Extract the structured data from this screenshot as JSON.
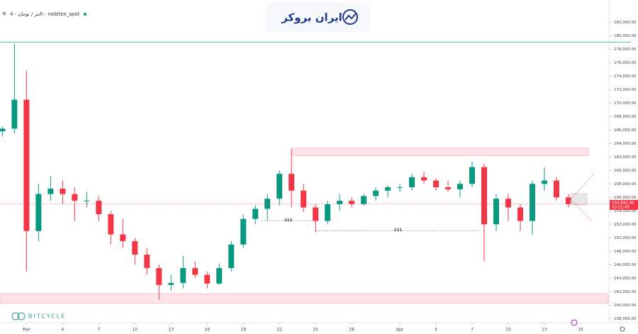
{
  "chart_data": {
    "type": "candlestick",
    "title": "تتر / تومان · 4h · nobitex_spot",
    "logo": "ایران بروکر",
    "watermark": "BITCYCLE",
    "up_color": "#089981",
    "down_color": "#f23645",
    "x": [
      -1,
      0,
      1,
      2,
      3,
      4,
      5,
      6,
      7,
      8,
      9,
      10,
      11,
      12,
      13,
      14,
      15,
      16,
      17,
      18,
      19,
      20,
      21,
      22,
      23,
      24,
      25,
      26,
      27,
      28,
      29,
      30,
      31,
      32,
      33,
      34,
      35,
      36,
      37,
      38,
      39,
      40,
      41,
      42,
      43,
      44,
      45,
      46
    ],
    "open": [
      165800,
      166200,
      170500,
      151000,
      156500,
      157300,
      156500,
      155500,
      155500,
      153500,
      150500,
      149500,
      147500,
      145500,
      143000,
      143300,
      145500,
      144500,
      143200,
      145500,
      149000,
      152800,
      154300,
      155800,
      159500,
      157000,
      154500,
      152500,
      155000,
      155500,
      155000,
      156200,
      157000,
      157500,
      157500,
      159000,
      158500,
      157500,
      157200,
      158000,
      160500,
      152000,
      155800,
      154500,
      152500,
      158000,
      158500,
      156000
    ],
    "high": [
      166500,
      178800,
      174800,
      158000,
      159200,
      158500,
      157500,
      156800,
      156200,
      154000,
      152800,
      150000,
      148500,
      146000,
      144500,
      147300,
      146500,
      145000,
      146200,
      149500,
      153500,
      154800,
      156500,
      160000,
      163200,
      158000,
      155000,
      155500,
      156500,
      156000,
      156500,
      157500,
      157800,
      158000,
      159500,
      159800,
      158800,
      158500,
      158500,
      161300,
      161000,
      156500,
      156500,
      155000,
      158500,
      160500,
      159000,
      156500
    ],
    "low": [
      165000,
      165500,
      145000,
      149500,
      155500,
      155000,
      152500,
      154500,
      152500,
      149000,
      148500,
      146000,
      144500,
      140800,
      142200,
      142500,
      144000,
      142500,
      143000,
      145000,
      148500,
      152000,
      152500,
      154800,
      154500,
      153800,
      150800,
      152000,
      154000,
      154500,
      154800,
      155500,
      156000,
      156800,
      157000,
      158000,
      157000,
      156800,
      156000,
      157500,
      146500,
      151000,
      152500,
      151000,
      150500,
      157000,
      155500,
      154500
    ],
    "close": [
      166200,
      170500,
      151000,
      156500,
      157300,
      156500,
      155500,
      155500,
      153500,
      150500,
      149500,
      147500,
      145500,
      143000,
      143300,
      145500,
      144500,
      143200,
      145500,
      149000,
      152800,
      154300,
      155800,
      159500,
      157000,
      154500,
      152500,
      155000,
      155500,
      155000,
      156200,
      157000,
      157500,
      157500,
      159000,
      158500,
      157500,
      157200,
      158000,
      160500,
      152000,
      155800,
      154500,
      152500,
      158000,
      158500,
      156000,
      154991
    ],
    "xlim": [
      -1.2,
      49.3
    ],
    "ylim": [
      137400,
      185300
    ],
    "xticks": [
      {
        "value": 1,
        "label": "Mar"
      },
      4,
      7,
      10,
      13,
      16,
      19,
      22,
      25,
      28,
      {
        "value": 32,
        "label": "Apr"
      },
      {
        "value": 35,
        "label": "4"
      },
      {
        "value": 38,
        "label": "7"
      },
      {
        "value": 41,
        "label": "10"
      },
      {
        "value": 44,
        "label": "13"
      },
      {
        "value": 47,
        "label": "16"
      }
    ],
    "yticks": [
      {
        "value": 138000,
        "label": "138,000.00"
      },
      {
        "value": 140000,
        "label": "140,000.00"
      },
      {
        "value": 142000,
        "label": "142,000.00"
      },
      {
        "value": 144000,
        "label": "144,000.00"
      },
      {
        "value": 146000,
        "label": "146,000.00"
      },
      {
        "value": 148000,
        "label": "148,000.00"
      },
      {
        "value": 150000,
        "label": "150,000.00"
      },
      {
        "value": 152000,
        "label": "152,000.00"
      },
      {
        "value": 154000,
        "label": "154,000.00"
      },
      {
        "value": 156000,
        "label": "156,000.00"
      },
      {
        "value": 158000,
        "label": "158,000.00"
      },
      {
        "value": 160000,
        "label": "160,000.00"
      },
      {
        "value": 162000,
        "label": "162,000.00"
      },
      {
        "value": 164000,
        "label": "164,000.00"
      },
      {
        "value": 166000,
        "label": "166,000.00"
      },
      {
        "value": 168000,
        "label": "168,000.00"
      },
      {
        "value": 170000,
        "label": "170,000.00"
      },
      {
        "value": 172000,
        "label": "172,000.00"
      },
      {
        "value": 174000,
        "label": "174,000.00"
      },
      {
        "value": 176000,
        "label": "176,000.00"
      },
      {
        "value": 178000,
        "label": "178,000.00"
      },
      {
        "value": 180000,
        "label": "180,000.00"
      },
      {
        "value": 182000,
        "label": "182,000.00"
      }
    ],
    "zones": [
      {
        "low": 162200,
        "high": 163300,
        "from": 23,
        "to": 47.7,
        "color": "#fde4e8"
      },
      {
        "low": 140300,
        "high": 141700,
        "from": -1.2,
        "to": 49.3,
        "color": "#fde4e8"
      }
    ],
    "hline": {
      "value": 179050,
      "color": "#4cc2a0"
    },
    "levels": [
      {
        "value": 152530,
        "from": 20.5,
        "to": 25,
        "label": "$$$"
      },
      {
        "value": 151050,
        "from": 25,
        "to": 38.7,
        "label": "$$$"
      }
    ],
    "last_price": {
      "value": 154991,
      "label": "154,991.00",
      "countdown": "03:21:49",
      "color": "#f23645"
    }
  }
}
